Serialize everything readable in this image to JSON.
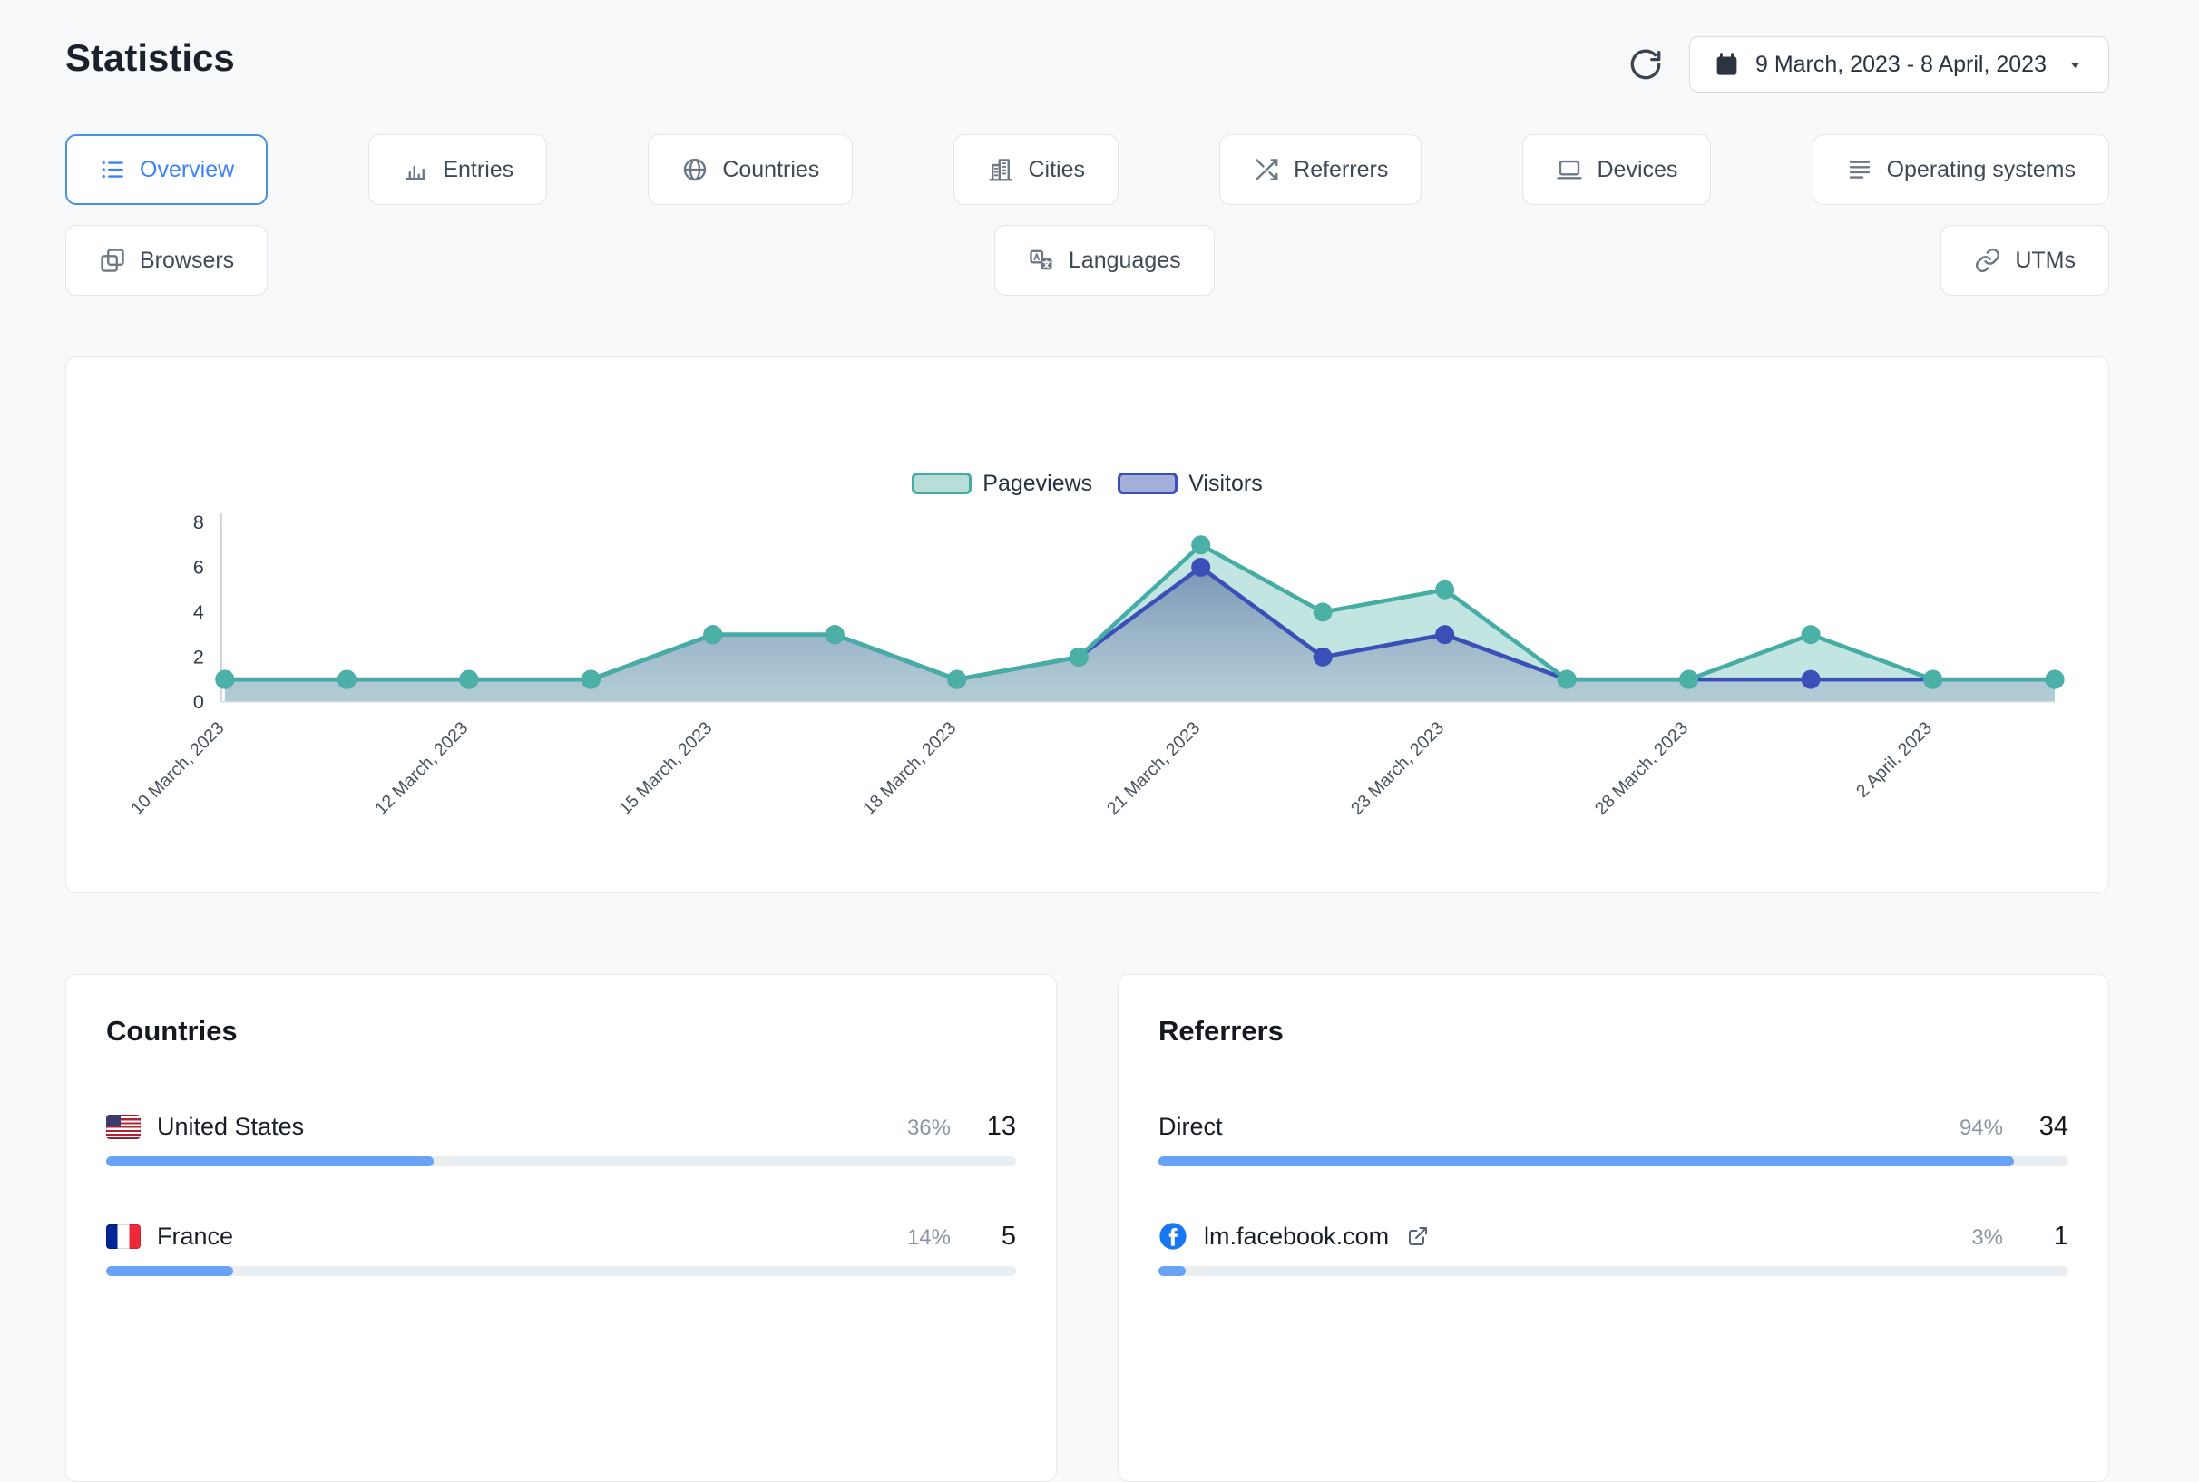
{
  "page": {
    "title": "Statistics"
  },
  "header": {
    "date_range": "9 March, 2023 - 8 April, 2023"
  },
  "tabs": {
    "row1": [
      {
        "label": "Overview",
        "icon": "overview-list-icon",
        "active": true
      },
      {
        "label": "Entries",
        "icon": "entries-chart-icon",
        "active": false
      },
      {
        "label": "Countries",
        "icon": "globe-icon",
        "active": false
      },
      {
        "label": "Cities",
        "icon": "city-buildings-icon",
        "active": false
      },
      {
        "label": "Referrers",
        "icon": "shuffle-icon",
        "active": false
      },
      {
        "label": "Devices",
        "icon": "laptop-icon",
        "active": false
      },
      {
        "label": "Operating systems",
        "icon": "list-lines-icon",
        "active": false
      }
    ],
    "row2": [
      {
        "label": "Browsers",
        "icon": "browser-windows-icon",
        "active": false
      },
      {
        "label": "Languages",
        "icon": "language-icon",
        "active": false
      },
      {
        "label": "UTMs",
        "icon": "link-icon",
        "active": false
      }
    ]
  },
  "chart_data": {
    "type": "area",
    "legend": [
      {
        "name": "Pageviews",
        "line_color": "#45ada3",
        "fill_color": "#b9ddd8"
      },
      {
        "name": "Visitors",
        "line_color": "#3b4fb8",
        "fill_color": "#a3aed9"
      }
    ],
    "x_labels": [
      "10 March, 2023",
      "12 March, 2023",
      "15 March, 2023",
      "18 March, 2023",
      "21 March, 2023",
      "23 March, 2023",
      "28 March, 2023",
      "2 April, 2023"
    ],
    "x_label_indices": [
      0,
      2,
      4,
      6,
      8,
      10,
      12,
      14
    ],
    "series": [
      {
        "name": "Pageviews",
        "values": [
          1,
          1,
          1,
          1,
          3,
          3,
          1,
          2,
          7,
          4,
          5,
          1,
          1,
          3,
          1,
          1
        ]
      },
      {
        "name": "Visitors",
        "values": [
          1,
          1,
          1,
          1,
          3,
          3,
          1,
          2,
          6,
          2,
          3,
          1,
          1,
          1,
          1,
          1
        ]
      }
    ],
    "ylim": [
      0,
      8
    ],
    "yticks": [
      0,
      2,
      4,
      6,
      8
    ],
    "grid": false,
    "legend_position": "top-center"
  },
  "countries": {
    "title": "Countries",
    "rows": [
      {
        "name": "United States",
        "flag": "us-flag",
        "percent": "36%",
        "count": 13,
        "bar_pct": 36
      },
      {
        "name": "France",
        "flag": "france-flag",
        "percent": "14%",
        "count": 5,
        "bar_pct": 14
      }
    ]
  },
  "referrers": {
    "title": "Referrers",
    "rows": [
      {
        "name": "Direct",
        "icon": null,
        "percent": "94%",
        "count": 34,
        "bar_pct": 94,
        "external": false
      },
      {
        "name": "lm.facebook.com",
        "icon": "facebook-icon",
        "percent": "3%",
        "count": 1,
        "bar_pct": 3,
        "external": true
      }
    ]
  },
  "colors": {
    "accent_blue": "#3b82f6",
    "active_tab_border": "#4a90e2",
    "bar_fill": "#69a1f4",
    "pageviews_line": "#45ada3",
    "visitors_line": "#3b4fb8",
    "facebook_blue": "#1877f2"
  }
}
